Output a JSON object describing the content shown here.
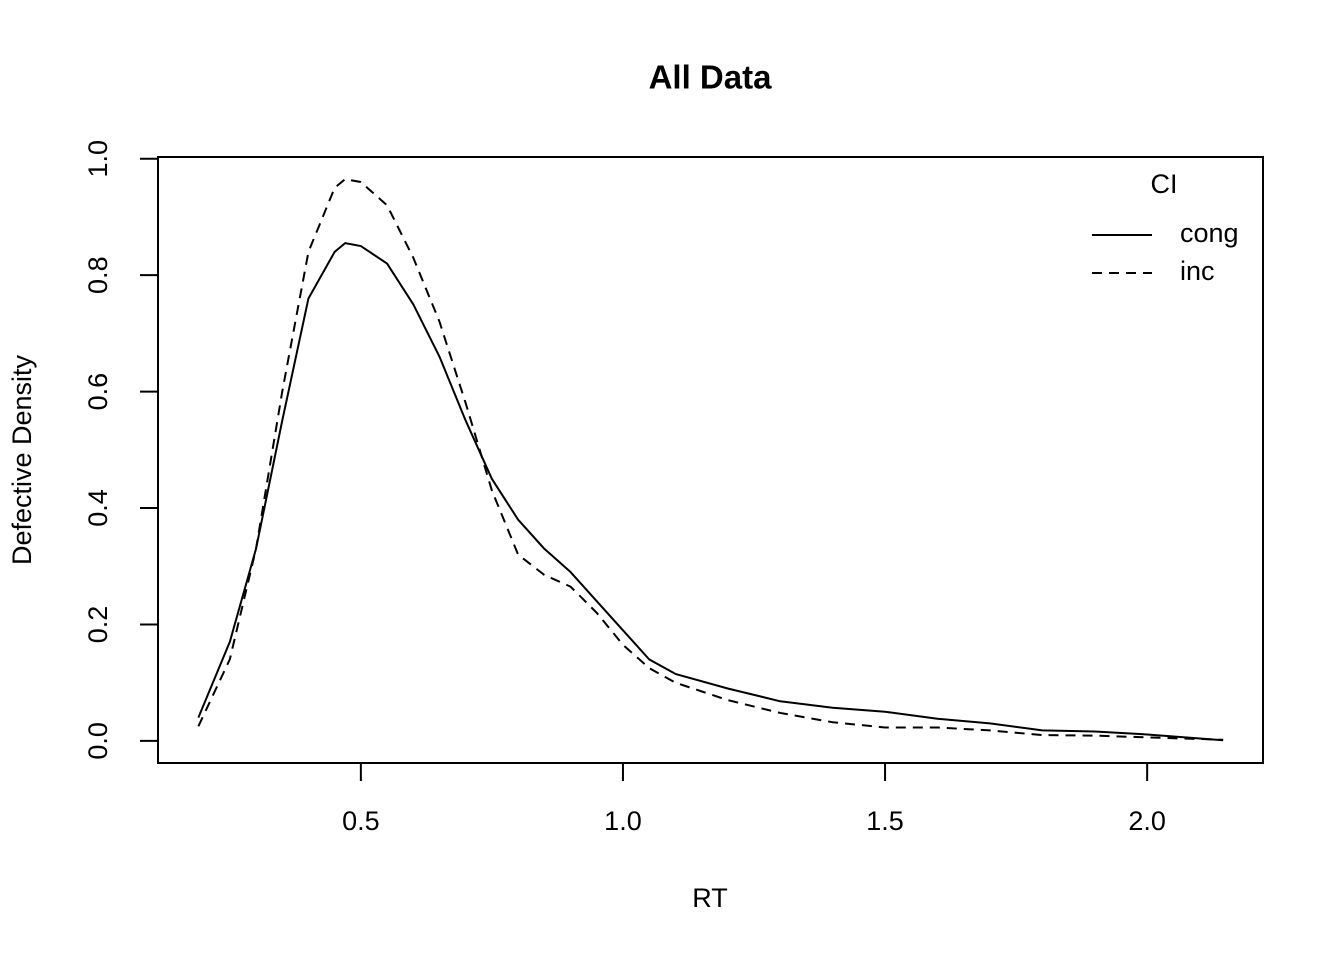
{
  "chart_data": {
    "type": "line",
    "title": "All Data",
    "x_label": "RT",
    "y_label": "Defective Density",
    "x": [
      0.19,
      0.25,
      0.3,
      0.35,
      0.4,
      0.45,
      0.47,
      0.5,
      0.55,
      0.6,
      0.65,
      0.7,
      0.75,
      0.8,
      0.85,
      0.9,
      0.95,
      1.0,
      1.05,
      1.1,
      1.2,
      1.3,
      1.4,
      1.5,
      1.6,
      1.7,
      1.8,
      1.9,
      2.0,
      2.145
    ],
    "series": [
      {
        "name": "cong",
        "color": "#000000",
        "dash": "solid",
        "values": [
          0.04,
          0.17,
          0.33,
          0.55,
          0.76,
          0.84,
          0.855,
          0.85,
          0.82,
          0.75,
          0.66,
          0.55,
          0.45,
          0.38,
          0.33,
          0.29,
          0.24,
          0.19,
          0.14,
          0.115,
          0.09,
          0.068,
          0.057,
          0.05,
          0.038,
          0.03,
          0.018,
          0.016,
          0.011,
          0.001
        ]
      },
      {
        "name": "inc",
        "color": "#000000",
        "dash": "dashed",
        "values": [
          0.025,
          0.14,
          0.33,
          0.6,
          0.84,
          0.95,
          0.965,
          0.96,
          0.92,
          0.83,
          0.72,
          0.58,
          0.43,
          0.32,
          0.285,
          0.265,
          0.22,
          0.165,
          0.125,
          0.1,
          0.07,
          0.048,
          0.032,
          0.023,
          0.023,
          0.018,
          0.01,
          0.009,
          0.006,
          0.002
        ]
      }
    ],
    "legend_title": "CI",
    "legend_position": "top-right",
    "xlim": [
      0.113,
      2.221
    ],
    "xticks": [
      0.5,
      {
        "value": 1,
        "label": "1.0"
      },
      1.5,
      {
        "value": 2,
        "label": "2.0"
      }
    ],
    "ylim": [
      -0.038,
      1.003
    ],
    "yticks": [
      {
        "value": 0,
        "label": "0.0"
      },
      0.2,
      0.4,
      0.6,
      0.8,
      {
        "value": 1,
        "label": "1.0"
      }
    ],
    "grid": false
  }
}
